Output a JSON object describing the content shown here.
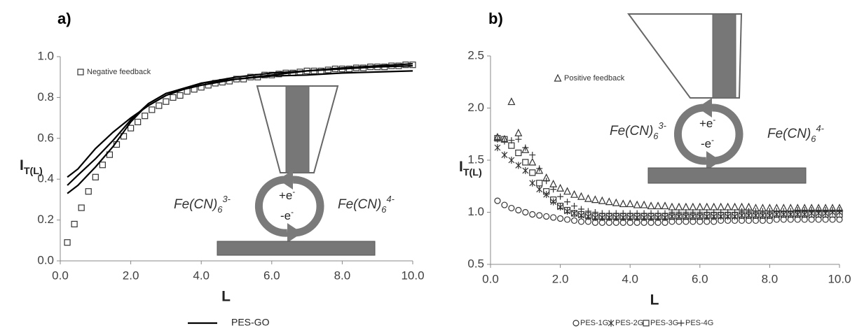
{
  "chart_data": [
    {
      "type": "scatter",
      "title": "a)",
      "xlabel": "L",
      "ylabel": {
        "text": "I",
        "sub": "T(L)"
      },
      "xlim": [
        0,
        10
      ],
      "ylim": [
        0,
        1
      ],
      "grid": false,
      "xticks": [
        {
          "value": 0,
          "label": "0.0"
        },
        {
          "value": 2,
          "label": "2.0"
        },
        {
          "value": 4,
          "label": "4.0"
        },
        {
          "value": 6,
          "label": "6.0"
        },
        {
          "value": 8,
          "label": "8.0"
        },
        {
          "value": 10,
          "label": "10.0"
        }
      ],
      "yticks": [
        {
          "value": 0,
          "label": "0.0"
        },
        0.2,
        0.4,
        0.6,
        0.8,
        {
          "value": 1,
          "label": "1.0"
        }
      ],
      "series": [
        {
          "name": "Negative feedback",
          "type": "scatter",
          "marker": "square",
          "color": "#333333",
          "legend": "upper left",
          "x": [
            0.2,
            0.4,
            0.6,
            0.8,
            1.0,
            1.2,
            1.4,
            1.6,
            1.8,
            2.0,
            2.2,
            2.4,
            2.6,
            2.8,
            3.0,
            3.2,
            3.4,
            3.6,
            3.8,
            4.0,
            4.2,
            4.4,
            4.6,
            4.8,
            5.0,
            5.2,
            5.4,
            5.6,
            5.8,
            6.0,
            6.2,
            6.4,
            6.6,
            6.8,
            7.0,
            7.2,
            7.4,
            7.6,
            7.8,
            8.0,
            8.2,
            8.4,
            8.6,
            8.8,
            9.0,
            9.2,
            9.4,
            9.6,
            9.8,
            10.0
          ],
          "values": [
            0.09,
            0.18,
            0.26,
            0.34,
            0.41,
            0.47,
            0.52,
            0.57,
            0.61,
            0.65,
            0.68,
            0.71,
            0.74,
            0.76,
            0.78,
            0.8,
            0.81,
            0.83,
            0.84,
            0.85,
            0.86,
            0.87,
            0.875,
            0.88,
            0.89,
            0.89,
            0.9,
            0.9,
            0.91,
            0.91,
            0.915,
            0.92,
            0.92,
            0.925,
            0.93,
            0.93,
            0.93,
            0.935,
            0.94,
            0.94,
            0.94,
            0.945,
            0.945,
            0.95,
            0.95,
            0.95,
            0.955,
            0.955,
            0.96,
            0.96
          ]
        },
        {
          "name": "PES-GO",
          "type": "line",
          "color": "#000000",
          "legend": "below",
          "x": [
            0.2,
            0.5,
            1,
            1.5,
            2,
            2.5,
            3,
            4,
            5,
            6,
            7,
            8,
            9,
            10
          ],
          "values": [
            0.41,
            0.45,
            0.55,
            0.63,
            0.7,
            0.76,
            0.81,
            0.87,
            0.89,
            0.905,
            0.91,
            0.92,
            0.925,
            0.93
          ]
        },
        {
          "type": "line",
          "color": "#000000",
          "x": [
            0.2,
            0.5,
            1,
            1.5,
            2,
            2.5,
            3,
            4,
            5,
            6,
            7,
            8,
            9,
            10
          ],
          "values": [
            0.37,
            0.42,
            0.5,
            0.59,
            0.69,
            0.77,
            0.82,
            0.87,
            0.9,
            0.92,
            0.93,
            0.94,
            0.95,
            0.955
          ]
        },
        {
          "type": "line",
          "color": "#000000",
          "x": [
            0.2,
            0.5,
            1,
            1.5,
            2,
            2.5,
            3,
            4,
            5,
            6,
            7,
            8,
            9,
            10
          ],
          "values": [
            0.33,
            0.37,
            0.46,
            0.56,
            0.68,
            0.77,
            0.82,
            0.86,
            0.89,
            0.91,
            0.93,
            0.945,
            0.955,
            0.965
          ]
        }
      ],
      "annotations": [
        {
          "text": "Fe(CN)",
          "sub": "6",
          "sup": "3-"
        },
        {
          "text": "+e",
          "sup": "-"
        },
        {
          "text": "-e",
          "sup": "-"
        },
        {
          "text": "Fe(CN)",
          "sub": "6",
          "sup": "4-"
        }
      ]
    },
    {
      "type": "scatter",
      "title": "b)",
      "xlabel": "L",
      "ylabel": {
        "text": "I",
        "sub": "T(L)"
      },
      "xlim": [
        0,
        10
      ],
      "ylim": [
        0.5,
        2.5
      ],
      "grid": false,
      "xticks": [
        {
          "value": 0,
          "label": "0.0"
        },
        {
          "value": 2,
          "label": "2.0"
        },
        {
          "value": 4,
          "label": "4.0"
        },
        {
          "value": 6,
          "label": "6.0"
        },
        {
          "value": 8,
          "label": "8.0"
        },
        {
          "value": 10,
          "label": "10.0"
        }
      ],
      "yticks": [
        0.5,
        {
          "value": 1,
          "label": "1.0"
        },
        1.5,
        {
          "value": 2,
          "label": "2.0"
        },
        2.5
      ],
      "x": [
        0.2,
        0.4,
        0.6,
        0.8,
        1.0,
        1.2,
        1.4,
        1.6,
        1.8,
        2.0,
        2.2,
        2.4,
        2.6,
        2.8,
        3.0,
        3.2,
        3.4,
        3.6,
        3.8,
        4.0,
        4.2,
        4.4,
        4.6,
        4.8,
        5.0,
        5.2,
        5.4,
        5.6,
        5.8,
        6.0,
        6.2,
        6.4,
        6.6,
        6.8,
        7.0,
        7.2,
        7.4,
        7.6,
        7.8,
        8.0,
        8.2,
        8.4,
        8.6,
        8.8,
        9.0,
        9.2,
        9.4,
        9.6,
        9.8,
        10.0
      ],
      "series": [
        {
          "name": "PES-1G",
          "type": "scatter",
          "marker": "circle",
          "color": "#333333",
          "legend": "below",
          "values": [
            1.11,
            1.07,
            1.04,
            1.02,
            1.0,
            0.98,
            0.97,
            0.96,
            0.95,
            0.94,
            0.93,
            0.92,
            0.91,
            0.91,
            0.9,
            0.9,
            0.9,
            0.9,
            0.9,
            0.9,
            0.9,
            0.9,
            0.9,
            0.9,
            0.9,
            0.91,
            0.91,
            0.91,
            0.91,
            0.91,
            0.91,
            0.91,
            0.92,
            0.92,
            0.92,
            0.92,
            0.92,
            0.92,
            0.92,
            0.92,
            0.93,
            0.93,
            0.93,
            0.93,
            0.93,
            0.93,
            0.93,
            0.93,
            0.93,
            0.93
          ]
        },
        {
          "name": "PES-2G",
          "type": "scatter",
          "marker": "asterisk",
          "color": "#333333",
          "legend": "below",
          "values": [
            1.62,
            1.55,
            1.5,
            1.45,
            1.4,
            1.28,
            1.22,
            1.17,
            1.1,
            1.05,
            1.01,
            0.99,
            0.97,
            0.96,
            0.95,
            0.95,
            0.95,
            0.95,
            0.95,
            0.95,
            0.95,
            0.95,
            0.95,
            0.95,
            0.95,
            0.96,
            0.96,
            0.96,
            0.96,
            0.96,
            0.96,
            0.96,
            0.96,
            0.96,
            0.96,
            0.97,
            0.97,
            0.97,
            0.97,
            0.97,
            0.98,
            0.98,
            0.98,
            0.98,
            0.98,
            0.99,
            0.99,
            0.99,
            1.0,
            1.0
          ]
        },
        {
          "name": "PES-3G",
          "type": "scatter",
          "marker": "square",
          "color": "#333333",
          "legend": "below",
          "values": [
            1.71,
            1.7,
            1.64,
            1.57,
            1.48,
            1.38,
            1.28,
            1.2,
            1.12,
            1.06,
            1.02,
            0.99,
            0.98,
            0.97,
            0.96,
            0.96,
            0.96,
            0.96,
            0.96,
            0.96,
            0.96,
            0.96,
            0.96,
            0.96,
            0.96,
            0.96,
            0.96,
            0.96,
            0.96,
            0.96,
            0.97,
            0.97,
            0.97,
            0.97,
            0.97,
            0.97,
            0.97,
            0.97,
            0.97,
            0.97,
            0.98,
            0.98,
            0.98,
            0.98,
            0.98,
            0.98,
            0.98,
            0.98,
            0.98,
            0.98
          ]
        },
        {
          "name": "PES-4G",
          "type": "scatter",
          "marker": "cross",
          "color": "#333333",
          "legend": "below",
          "values": [
            1.7,
            1.68,
            1.69,
            1.7,
            1.62,
            1.55,
            1.42,
            1.3,
            1.22,
            1.15,
            1.1,
            1.06,
            1.03,
            1.01,
            1.0,
            0.99,
            0.99,
            0.99,
            0.99,
            0.99,
            0.99,
            0.99,
            0.99,
            0.99,
            0.99,
            1.0,
            1.0,
            1.0,
            1.0,
            1.0,
            1.0,
            1.0,
            1.0,
            1.0,
            1.0,
            1.01,
            1.01,
            1.01,
            1.01,
            1.01,
            1.01,
            1.01,
            1.01,
            1.02,
            1.02,
            1.02,
            1.02,
            1.02,
            1.02,
            1.02
          ]
        },
        {
          "name": "Positive feedback",
          "type": "scatter",
          "marker": "triangle",
          "color": "#333333",
          "legend": "upper left",
          "values": [
            1.72,
            1.7,
            2.06,
            1.76,
            1.6,
            1.48,
            1.4,
            1.33,
            1.27,
            1.23,
            1.2,
            1.17,
            1.15,
            1.13,
            1.12,
            1.11,
            1.1,
            1.09,
            1.08,
            1.08,
            1.07,
            1.07,
            1.06,
            1.06,
            1.06,
            1.05,
            1.05,
            1.05,
            1.05,
            1.05,
            1.05,
            1.05,
            1.05,
            1.05,
            1.05,
            1.05,
            1.05,
            1.04,
            1.04,
            1.04,
            1.04,
            1.04,
            1.04,
            1.04,
            1.04,
            1.04,
            1.04,
            1.04,
            1.04,
            1.04
          ]
        }
      ],
      "annotations": [
        {
          "text": "Fe(CN)",
          "sub": "6",
          "sup": "3-"
        },
        {
          "text": "+e",
          "sup": "-"
        },
        {
          "text": "-e",
          "sup": "-"
        },
        {
          "text": "Fe(CN)",
          "sub": "6",
          "sup": "4-"
        }
      ]
    }
  ]
}
